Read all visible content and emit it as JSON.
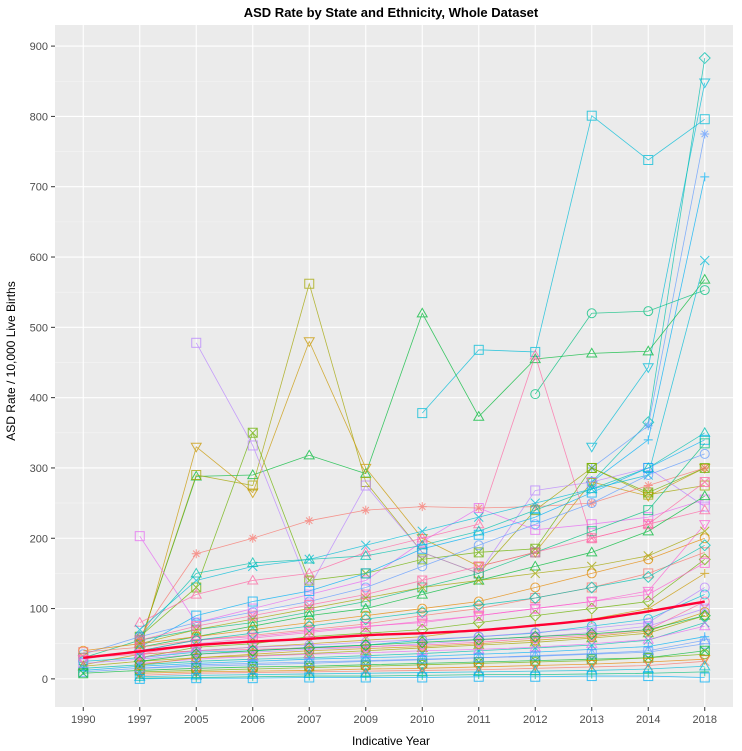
{
  "chart_data": {
    "type": "line",
    "title": "ASD Rate by State and Ethnicity, Whole Dataset",
    "xlabel": "Indicative Year",
    "ylabel": "ASD Rate / 10,000 Live Births",
    "categories": [
      "1990",
      "1997",
      "2005",
      "2006",
      "2007",
      "2009",
      "2010",
      "2011",
      "2012",
      "2013",
      "2014",
      "2018"
    ],
    "yticks": [
      "0",
      "100",
      "200",
      "300",
      "400",
      "500",
      "600",
      "700",
      "800",
      "900"
    ],
    "ylim": [
      -40,
      930
    ],
    "grid": true,
    "legend": "none",
    "colors": {
      "panel": "#ebebeb",
      "grid_major": "#ffffff",
      "grid_minor": "#f5f5f5",
      "trend": "#ff0033",
      "palette": [
        "#f8766d",
        "#e58700",
        "#c99800",
        "#a3a500",
        "#6bb100",
        "#00ba38",
        "#00bf7d",
        "#00c0af",
        "#00bcd8",
        "#00b0f6",
        "#619cff",
        "#b983ff",
        "#e76bf3",
        "#fd61d1",
        "#ff67a4"
      ]
    },
    "trend": {
      "name": "Overall trend",
      "values": [
        30,
        39,
        48,
        53,
        57,
        62,
        65,
        69,
        76,
        84,
        96,
        110
      ]
    },
    "series": [
      {
        "color": "#00bcd8",
        "marker": "square",
        "values": [
          null,
          null,
          null,
          null,
          null,
          null,
          378,
          468,
          465,
          801,
          738,
          796
        ]
      },
      {
        "color": "#00bcd8",
        "marker": "triangle-down",
        "values": [
          null,
          null,
          null,
          null,
          null,
          null,
          null,
          null,
          null,
          330,
          443,
          848
        ]
      },
      {
        "color": "#00c0af",
        "marker": "diamond",
        "values": [
          null,
          null,
          null,
          null,
          null,
          null,
          null,
          null,
          null,
          280,
          365,
          883
        ]
      },
      {
        "color": "#00b0f6",
        "marker": "plus",
        "values": [
          null,
          null,
          null,
          null,
          null,
          null,
          null,
          null,
          null,
          280,
          340,
          714
        ]
      },
      {
        "color": "#619cff",
        "marker": "asterisk",
        "values": [
          null,
          null,
          null,
          null,
          null,
          null,
          null,
          null,
          null,
          300,
          360,
          775
        ]
      },
      {
        "color": "#00bf7d",
        "marker": "circle",
        "values": [
          null,
          null,
          null,
          null,
          null,
          null,
          null,
          null,
          405,
          520,
          523,
          553
        ]
      },
      {
        "color": "#00ba38",
        "marker": "triangle",
        "values": [
          null,
          50,
          288,
          290,
          318,
          292,
          520,
          373,
          455,
          463,
          466,
          568
        ]
      },
      {
        "color": "#a3a500",
        "marker": "square",
        "values": [
          null,
          50,
          290,
          275,
          562,
          280,
          180,
          150,
          240,
          300,
          262,
          275
        ]
      },
      {
        "color": "#c99800",
        "marker": "triangle-down",
        "values": [
          null,
          40,
          330,
          265,
          480,
          300,
          200,
          160,
          180,
          280,
          260,
          300
        ]
      },
      {
        "color": "#6bb100",
        "marker": "square-x",
        "values": [
          null,
          60,
          130,
          350,
          140,
          150,
          170,
          180,
          185,
          300,
          265,
          300
        ]
      },
      {
        "color": "#b983ff",
        "marker": "square",
        "values": [
          null,
          null,
          478,
          332,
          130,
          275,
          180,
          150,
          268,
          280,
          300,
          245
        ]
      },
      {
        "color": "#e76bf3",
        "marker": "square",
        "values": [
          null,
          203,
          80,
          100,
          120,
          140,
          195,
          243,
          212,
          220,
          230,
          255
        ]
      },
      {
        "color": "#f8766d",
        "marker": "asterisk",
        "values": [
          null,
          60,
          178,
          200,
          225,
          240,
          245,
          243,
          245,
          250,
          275,
          300
        ]
      },
      {
        "color": "#ff67a4",
        "marker": "triangle",
        "values": [
          null,
          80,
          120,
          140,
          150,
          180,
          200,
          220,
          460,
          200,
          220,
          240
        ]
      },
      {
        "color": "#00bcd8",
        "marker": "x",
        "values": [
          null,
          70,
          140,
          160,
          170,
          190,
          210,
          230,
          250,
          270,
          290,
          595
        ]
      },
      {
        "color": "#00c0af",
        "marker": "triangle",
        "values": [
          null,
          60,
          150,
          165,
          170,
          175,
          190,
          210,
          240,
          270,
          300,
          350
        ]
      },
      {
        "color": "#00b0f6",
        "marker": "square",
        "values": [
          null,
          45,
          90,
          110,
          125,
          150,
          185,
          205,
          230,
          265,
          300,
          340
        ]
      },
      {
        "color": "#619cff",
        "marker": "circle",
        "values": [
          35,
          60,
          80,
          95,
          110,
          130,
          160,
          190,
          220,
          250,
          290,
          320
        ]
      },
      {
        "color": "#00bf7d",
        "marker": "square",
        "values": [
          30,
          55,
          70,
          80,
          95,
          110,
          130,
          150,
          180,
          210,
          240,
          335
        ]
      },
      {
        "color": "#00ba38",
        "marker": "triangle",
        "values": [
          null,
          45,
          60,
          75,
          90,
          100,
          120,
          140,
          160,
          180,
          210,
          260
        ]
      },
      {
        "color": "#e58700",
        "marker": "circle",
        "values": [
          40,
          50,
          60,
          70,
          80,
          90,
          100,
          110,
          130,
          150,
          170,
          200
        ]
      },
      {
        "color": "#f8766d",
        "marker": "square",
        "values": [
          38,
          45,
          55,
          62,
          70,
          78,
          90,
          100,
          115,
          130,
          150,
          180
        ]
      },
      {
        "color": "#fd61d1",
        "marker": "triangle-down",
        "values": [
          28,
          40,
          55,
          60,
          68,
          75,
          80,
          90,
          100,
          110,
          125,
          220
        ]
      },
      {
        "color": "#6bb100",
        "marker": "diamond",
        "values": [
          null,
          30,
          45,
          50,
          60,
          65,
          70,
          80,
          90,
          100,
          110,
          170
        ]
      },
      {
        "color": "#c99800",
        "marker": "plus",
        "values": [
          20,
          35,
          40,
          45,
          50,
          55,
          60,
          70,
          75,
          85,
          100,
          150
        ]
      },
      {
        "color": "#00bcd8",
        "marker": "circle",
        "values": [
          25,
          30,
          38,
          40,
          45,
          48,
          55,
          60,
          65,
          75,
          85,
          120
        ]
      },
      {
        "color": "#b983ff",
        "marker": "square-x",
        "values": [
          22,
          28,
          35,
          38,
          42,
          45,
          50,
          55,
          60,
          66,
          75,
          100
        ]
      },
      {
        "color": "#a3a500",
        "marker": "triangle",
        "values": [
          18,
          25,
          30,
          33,
          36,
          40,
          44,
          48,
          52,
          58,
          65,
          90
        ]
      },
      {
        "color": "#00c0af",
        "marker": "x",
        "values": [
          15,
          20,
          25,
          28,
          30,
          33,
          36,
          40,
          44,
          48,
          55,
          80
        ]
      },
      {
        "color": "#ff67a4",
        "marker": "circle",
        "values": [
          30,
          35,
          40,
          42,
          44,
          46,
          48,
          52,
          58,
          62,
          70,
          110
        ]
      },
      {
        "color": "#e76bf3",
        "marker": "triangle",
        "values": [
          null,
          22,
          28,
          32,
          35,
          37,
          40,
          42,
          45,
          50,
          56,
          75
        ]
      },
      {
        "color": "#00b0f6",
        "marker": "plus",
        "values": [
          12,
          18,
          22,
          25,
          28,
          30,
          32,
          35,
          38,
          42,
          46,
          60
        ]
      },
      {
        "color": "#619cff",
        "marker": "square",
        "values": [
          10,
          15,
          18,
          20,
          22,
          25,
          27,
          30,
          32,
          35,
          38,
          50
        ]
      },
      {
        "color": "#00ba38",
        "marker": "square-x",
        "values": [
          8,
          12,
          15,
          17,
          18,
          20,
          22,
          24,
          26,
          28,
          30,
          40
        ]
      },
      {
        "color": "#6bb100",
        "marker": "circle",
        "values": [
          null,
          10,
          12,
          14,
          16,
          18,
          20,
          22,
          24,
          26,
          30,
          35
        ]
      },
      {
        "color": "#e58700",
        "marker": "triangle-down",
        "values": [
          null,
          8,
          10,
          11,
          12,
          14,
          15,
          17,
          19,
          21,
          24,
          28
        ]
      },
      {
        "color": "#f8766d",
        "marker": "x",
        "values": [
          null,
          5,
          8,
          9,
          10,
          11,
          12,
          13,
          15,
          17,
          19,
          25
        ]
      },
      {
        "color": "#00bcd8",
        "marker": "triangle",
        "values": [
          null,
          3,
          5,
          6,
          7,
          8,
          9,
          10,
          11,
          12,
          14,
          18
        ]
      },
      {
        "color": "#00bf7d",
        "marker": "plus",
        "values": [
          null,
          1,
          2,
          3,
          4,
          4,
          5,
          6,
          6,
          7,
          8,
          10
        ]
      },
      {
        "color": "#00b0f6",
        "marker": "square",
        "values": [
          null,
          0,
          1,
          1,
          2,
          2,
          2,
          3,
          3,
          4,
          4,
          2
        ]
      },
      {
        "color": "#b983ff",
        "marker": "circle",
        "values": [
          null,
          30,
          40,
          45,
          48,
          52,
          56,
          60,
          66,
          72,
          80,
          130
        ]
      },
      {
        "color": "#00c0af",
        "marker": "diamond",
        "values": [
          null,
          40,
          55,
          65,
          75,
          85,
          95,
          105,
          115,
          130,
          145,
          190
        ]
      },
      {
        "color": "#fd61d1",
        "marker": "square",
        "values": [
          null,
          35,
          50,
          58,
          66,
          74,
          82,
          90,
          100,
          110,
          120,
          165
        ]
      },
      {
        "color": "#c99800",
        "marker": "circle",
        "values": [
          null,
          20,
          30,
          35,
          40,
          43,
          46,
          50,
          55,
          60,
          68,
          95
        ]
      },
      {
        "color": "#a3a500",
        "marker": "x",
        "values": [
          null,
          50,
          70,
          85,
          100,
          115,
          130,
          140,
          150,
          160,
          175,
          210
        ]
      },
      {
        "color": "#00ba38",
        "marker": "diamond",
        "values": [
          null,
          25,
          35,
          40,
          44,
          48,
          52,
          56,
          60,
          64,
          70,
          90
        ]
      },
      {
        "color": "#619cff",
        "marker": "triangle",
        "values": [
          null,
          15,
          20,
          22,
          24,
          26,
          28,
          30,
          33,
          36,
          40,
          55
        ]
      },
      {
        "color": "#ff67a4",
        "marker": "square-x",
        "values": [
          null,
          55,
          75,
          90,
          105,
          120,
          140,
          160,
          180,
          200,
          220,
          280
        ]
      }
    ]
  }
}
